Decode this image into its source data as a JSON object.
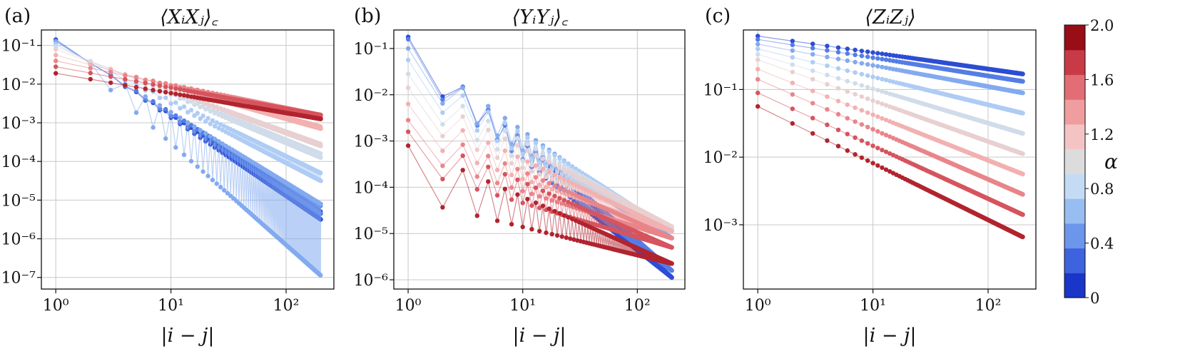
{
  "chart_data": [
    {
      "panel_label": "(a)",
      "type": "line",
      "title": "⟨XᵢXⱼ⟩꜀",
      "xlabel": "|i − j|",
      "ylabel": "",
      "xscale": "log",
      "yscale": "log",
      "xlim": [
        0.75,
        260
      ],
      "ylim_exp": [
        -7.3,
        -0.6
      ],
      "xticks": [
        {
          "exp": 0,
          "label": "10⁰"
        },
        {
          "exp": 1,
          "label": "10¹"
        },
        {
          "exp": 2,
          "label": "10²"
        }
      ],
      "yticks": [
        {
          "exp": -1,
          "label": "10⁻¹"
        },
        {
          "exp": -2,
          "label": "10⁻²"
        },
        {
          "exp": -3,
          "label": "10⁻³"
        },
        {
          "exp": -4,
          "label": "10⁻⁴"
        },
        {
          "exp": -5,
          "label": "10⁻⁵"
        },
        {
          "exp": -6,
          "label": "10⁻⁶"
        },
        {
          "exp": -7,
          "label": "10⁻⁷"
        }
      ],
      "grid": true,
      "r_max": 200,
      "alpha": [
        0.1,
        0.3,
        0.5,
        0.7,
        0.9,
        1.1,
        1.3,
        1.5,
        1.7,
        1.9
      ],
      "series_endpoints_log10": {
        "start_even": [
          -0.85,
          -0.88,
          -0.9,
          -0.97,
          -1.03,
          -1.1,
          -1.25,
          -1.4,
          -1.55,
          -1.72
        ],
        "end_even": [
          -5.5,
          -5.35,
          -5.1,
          -4.5,
          -3.9,
          -3.6,
          -3.15,
          -2.85,
          -2.8,
          -2.9
        ],
        "start_odd": [
          -0.85,
          -0.88,
          -0.9,
          -0.97,
          -1.03,
          -1.1,
          -1.25,
          -1.4,
          -1.55,
          -1.72
        ],
        "end_odd": [
          -5.3,
          -5.15,
          -6.95,
          -4.3,
          -3.8,
          -3.55,
          -3.1,
          -2.8,
          -2.8,
          -2.9
        ]
      }
    },
    {
      "panel_label": "(b)",
      "type": "line",
      "title": "⟨YᵢYⱼ⟩꜀",
      "xlabel": "|i − j|",
      "ylabel": "",
      "xscale": "log",
      "yscale": "log",
      "xlim": [
        0.75,
        260
      ],
      "ylim_exp": [
        -6.2,
        -0.6
      ],
      "xticks": [
        {
          "exp": 0,
          "label": "10⁰"
        },
        {
          "exp": 1,
          "label": "10¹"
        },
        {
          "exp": 2,
          "label": "10²"
        }
      ],
      "yticks": [
        {
          "exp": -1,
          "label": "10⁻¹"
        },
        {
          "exp": -2,
          "label": "10⁻²"
        },
        {
          "exp": -3,
          "label": "10⁻³"
        },
        {
          "exp": -4,
          "label": "10⁻⁴"
        },
        {
          "exp": -5,
          "label": "10⁻⁵"
        },
        {
          "exp": -6,
          "label": "10⁻⁶"
        }
      ],
      "grid": true,
      "r_max": 200,
      "alpha": [
        0.1,
        0.3,
        0.5,
        0.7,
        0.9,
        1.1,
        1.3,
        1.5,
        1.7,
        1.9
      ],
      "series_endpoints_log10": {
        "start_odd": [
          -0.75,
          -0.8,
          -1.0,
          -1.25,
          -1.55,
          -1.85,
          -2.2,
          -2.55,
          -2.8,
          -3.1
        ],
        "end_odd": [
          -5.95,
          -5.8,
          -5.1,
          -4.95,
          -4.9,
          -4.85,
          -4.95,
          -5.1,
          -5.3,
          -5.65
        ],
        "start_even": [
          -1.45,
          -1.55,
          -1.75,
          -2.0,
          -2.3,
          -2.6,
          -2.95,
          -3.3,
          -3.6,
          -4.25
        ],
        "end_even": [
          -5.95,
          -5.8,
          -5.1,
          -4.95,
          -4.9,
          -4.85,
          -4.95,
          -5.1,
          -5.3,
          -5.65
        ]
      }
    },
    {
      "panel_label": "(c)",
      "type": "line",
      "title": "⟨ZᵢZⱼ⟩",
      "xlabel": "|i − j|",
      "ylabel": "",
      "xscale": "log",
      "yscale": "log",
      "xlim": [
        0.75,
        260
      ],
      "ylim_exp": [
        -3.95,
        -0.12
      ],
      "xticks": [
        {
          "exp": 0,
          "label": "10⁰"
        },
        {
          "exp": 1,
          "label": "10¹"
        },
        {
          "exp": 2,
          "label": "10²"
        }
      ],
      "yticks": [
        {
          "exp": -1,
          "label": "10⁻¹"
        },
        {
          "exp": -2,
          "label": "10⁻²"
        },
        {
          "exp": -3,
          "label": "10⁻³"
        }
      ],
      "grid": true,
      "r_max": 200,
      "alpha": [
        0.1,
        0.3,
        0.5,
        0.7,
        0.9,
        1.1,
        1.3,
        1.5,
        1.7,
        1.9
      ],
      "series_endpoints_log10": {
        "start": [
          -0.21,
          -0.26,
          -0.33,
          -0.4,
          -0.48,
          -0.56,
          -0.7,
          -0.85,
          -1.05,
          -1.25
        ],
        "end": [
          -0.77,
          -0.88,
          -1.05,
          -1.35,
          -1.65,
          -1.95,
          -2.25,
          -2.55,
          -2.85,
          -3.18
        ]
      }
    }
  ],
  "colorbar": {
    "label": "α",
    "ticks": [
      "2.0",
      "1.6",
      "1.2",
      "0.8",
      "0.4",
      "0"
    ],
    "tick_values": [
      2.0,
      1.6,
      1.2,
      0.8,
      0.4,
      0
    ],
    "colors_bottom_to_top": [
      "#1a36c8",
      "#3d63df",
      "#6c96eb",
      "#98bdf2",
      "#c4dbf6",
      "#dcdcdc",
      "#f4c4c4",
      "#ef9d9e",
      "#e36d74",
      "#c93a47",
      "#980d16"
    ]
  }
}
